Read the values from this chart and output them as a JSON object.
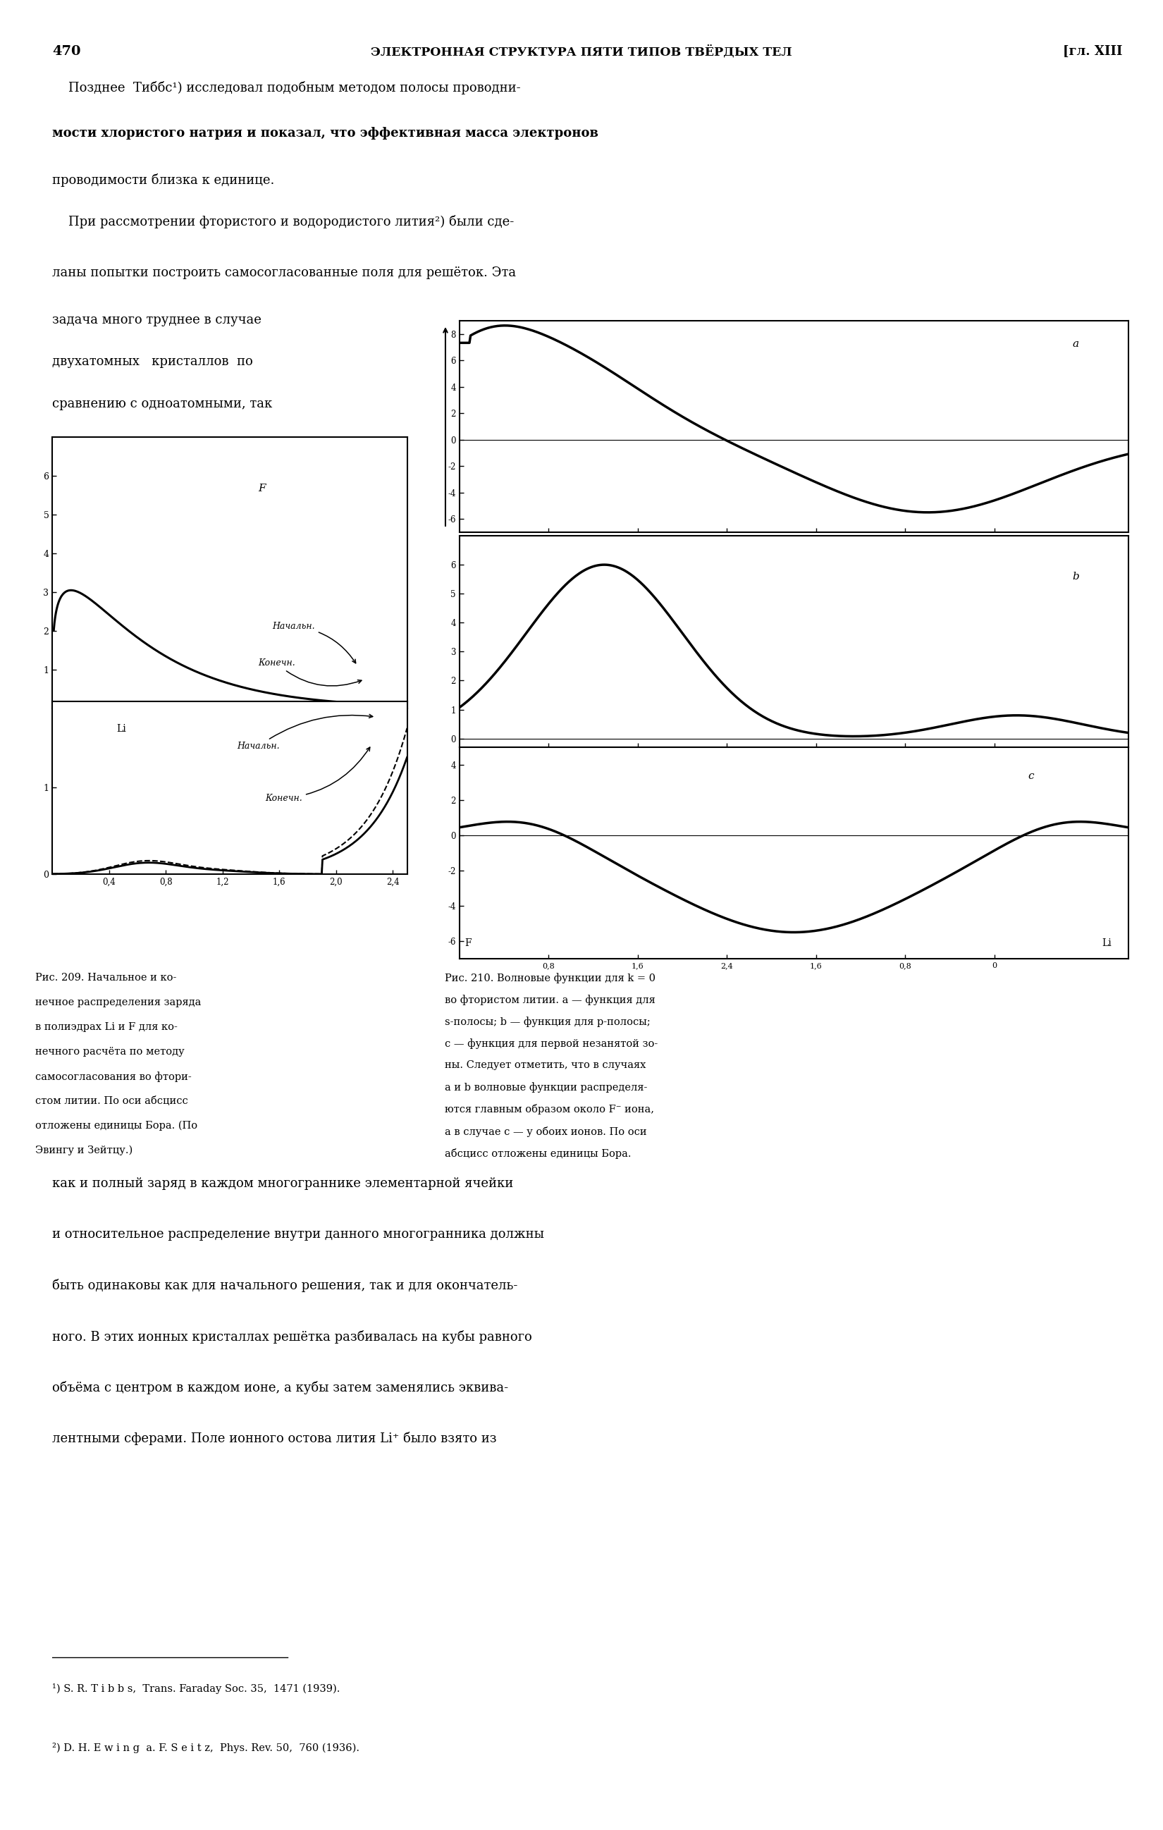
{
  "page_number": "470",
  "header": "ЭЛЕКТРОННАЯ СТРУКТУРА ПЯТИ ТИПОВ ТВЁРДЫХ ТЕЛ",
  "header_right": "[гл. XIII",
  "para1_lines": [
    "    Позднее  Тиббс¹) исследовал подобным методом полосы проводни-",
    "мости хлористого натрия и показал, что эффективная масса электронов",
    "проводимости близка к единице."
  ],
  "para1_bold": [
    false,
    true,
    false
  ],
  "para2_lines": [
    "    При рассмотрении фтористого и водородистого лития²) были сде-",
    "ланы попытки построить самосогласованные поля для решёток. Эта"
  ],
  "para3_lines": [
    "задача много труднее в случае",
    "двухатомных   кристаллов  по",
    "сравнению с одноатомными, так"
  ],
  "cap_left_lines": [
    "Рис. 209. Начальное и ко-",
    "нечное распределения заряда",
    "в полиэдрах Li и F для ко-",
    "нечного расчёта по методу",
    "самосогласования во фтори-",
    "стом литии. По оси абсцисс",
    "отложены единицы Бора. (По",
    "Эвингу и Зейтцу.)"
  ],
  "cap_right_lines": [
    "Рис. 210. Волновые функции для k = 0",
    "во фтористом литии. a — функция для",
    "s-полосы; b — функция для р-полосы;",
    "c — функция для первой незанятой зо-",
    "ны. Следует отметить, что в случаях",
    "a и b волновые функции распределя-",
    "ются главным образом около F⁻ иона,",
    "а в случае c — у обоих ионов. По оси",
    "абсцисс отложены единицы Бора."
  ],
  "bot_lines": [
    "как и полный заряд в каждом многограннике элементарной ячейки",
    "и относительное распределение внутри данного многогранника должны",
    "быть одинаковы как для начального решения, так и для окончатель-",
    "ного. В этих ионных кристаллах решётка разбивалась на кубы равного",
    "объёма с центром в каждом ионе, а кубы затем заменялись эквива-",
    "лентными сферами. Поле ионного остова лития Li⁺ было взято из"
  ],
  "footnote1": "¹) S. R. T i b b s,  Trans. Faraday Soc. 35,  1471 (1939).",
  "footnote2": "²) D. H. E w i n g  a. F. S e i t z,  Phys. Rev. 50,  760 (1936).",
  "background_color": "#ffffff",
  "text_color": "#000000"
}
